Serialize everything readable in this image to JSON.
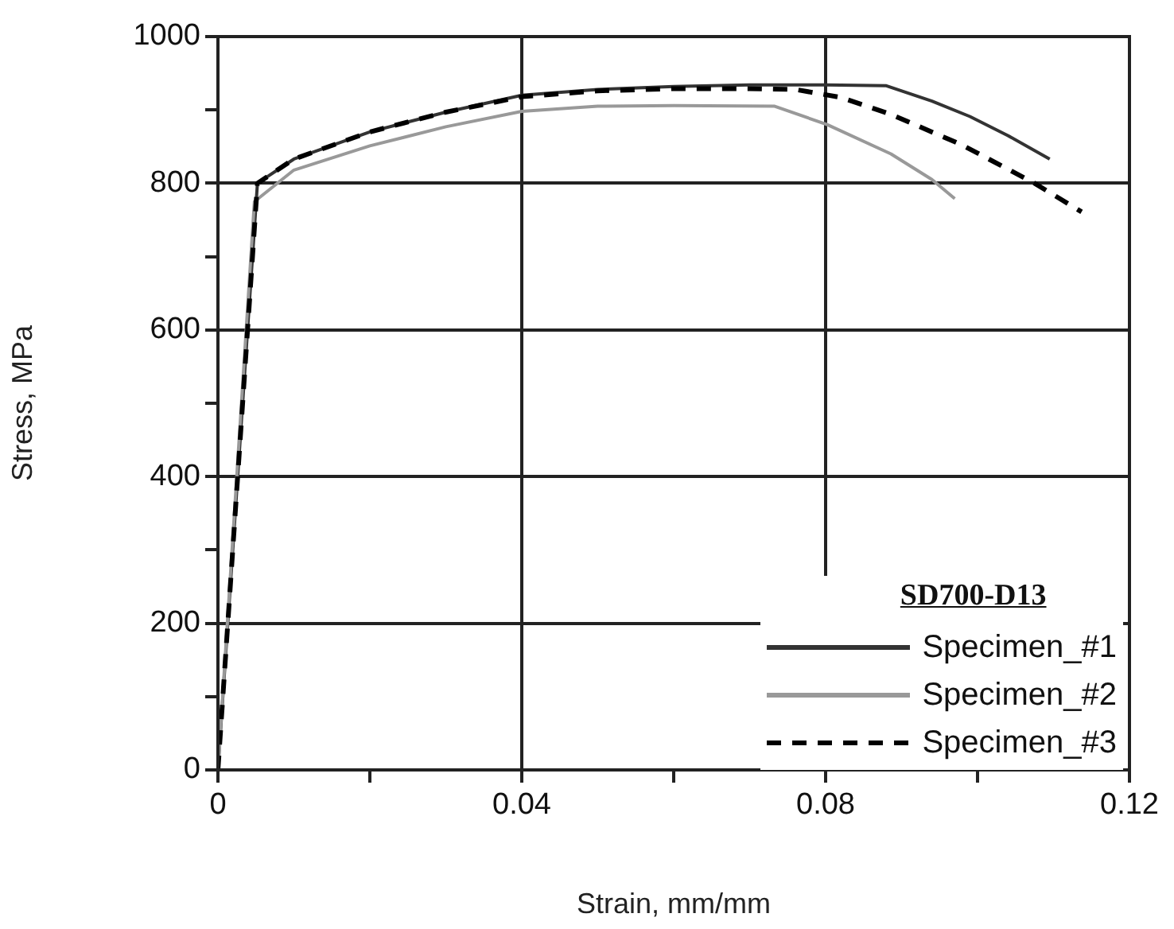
{
  "chart_data": {
    "type": "line",
    "xlabel": "Strain, mm/mm",
    "ylabel": "Stress, MPa",
    "legend_title": "SD700-D13",
    "xlim": [
      0,
      0.12
    ],
    "xticks": [
      0,
      {
        "value": 0.02,
        "label": null
      },
      0.04,
      {
        "value": 0.06,
        "label": null
      },
      0.08,
      {
        "value": 0.1,
        "label": null
      },
      0.12
    ],
    "ylim": [
      0,
      1000
    ],
    "yticks": [
      0,
      {
        "value": 100,
        "label": null
      },
      200,
      {
        "value": 300,
        "label": null
      },
      400,
      {
        "value": 500,
        "label": null
      },
      600,
      {
        "value": 700,
        "label": null
      },
      800,
      {
        "value": 900,
        "label": null
      },
      1000
    ],
    "grid": true,
    "legend": "bottom right",
    "marker": "none",
    "series": [
      {
        "name": "Specimen_#1",
        "color": "#333333",
        "line_style": "solid",
        "x": [
          0,
          0.0052,
          0.01,
          0.02,
          0.03,
          0.04,
          0.05,
          0.06,
          0.07,
          0.08,
          0.088,
          0.094,
          0.099,
          0.104,
          0.1095
        ],
        "values": [
          0,
          800,
          833,
          870,
          897,
          920,
          928,
          932,
          934,
          934,
          933,
          912,
          891,
          865,
          833
        ]
      },
      {
        "name": "Specimen_#2",
        "color": "#999999",
        "line_style": "solid",
        "x": [
          0,
          0.0048,
          0.01,
          0.02,
          0.03,
          0.04,
          0.05,
          0.06,
          0.0733,
          0.0802,
          0.0886,
          0.094,
          0.097
        ],
        "values": [
          0,
          775,
          818,
          851,
          877,
          898,
          905,
          906,
          905,
          880,
          840,
          805,
          779
        ]
      },
      {
        "name": "Specimen_#3",
        "color": "#000000",
        "line_style": "dashed",
        "x": [
          0,
          0.0052,
          0.01,
          0.02,
          0.03,
          0.04,
          0.05,
          0.06,
          0.07,
          0.076,
          0.082,
          0.0886,
          0.098,
          0.1075,
          0.1137
        ],
        "values": [
          0,
          800,
          833,
          870,
          897,
          918,
          926,
          929,
          929,
          928,
          917,
          894,
          852,
          800,
          761
        ]
      }
    ]
  }
}
